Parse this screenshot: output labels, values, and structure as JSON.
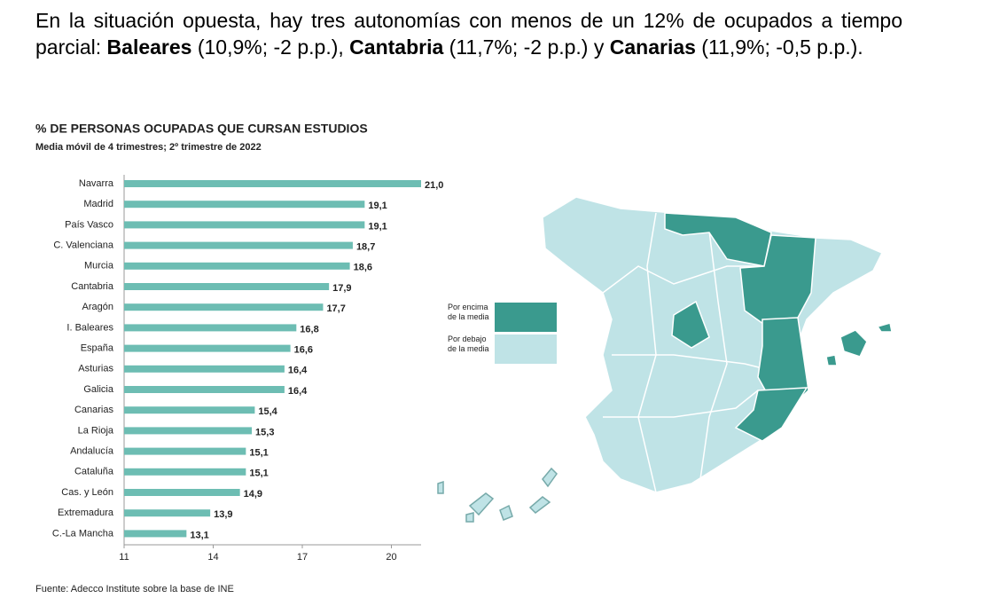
{
  "paragraph": {
    "runs": [
      "En la situación opuesta, hay tres autonomías con menos de un 12% de ocupados a tiempo parcial: ",
      "Baleares",
      " (10,9%; -2 p.p.), ",
      "Cantabria",
      " (11,7%; -2 p.p.) y ",
      "Canarias",
      " (11,9%; -0,5 p.p.)."
    ]
  },
  "chart_data": {
    "type": "bar",
    "orientation": "horizontal",
    "title": "% DE PERSONAS OCUPADAS QUE CURSAN ESTUDIOS",
    "subtitle": "Media móvil de 4 trimestres; 2º trimestre de 2022",
    "categories": [
      "Navarra",
      "Madrid",
      "País Vasco",
      "C. Valenciana",
      "Murcia",
      "Cantabria",
      "Aragón",
      "I. Baleares",
      "España",
      "Asturias",
      "Galicia",
      "Canarias",
      "La Rioja",
      "Andalucía",
      "Cataluña",
      "Cas. y León",
      "Extremadura",
      "C.-La Mancha"
    ],
    "values": [
      21.0,
      19.1,
      19.1,
      18.7,
      18.6,
      17.9,
      17.7,
      16.8,
      16.6,
      16.4,
      16.4,
      15.4,
      15.3,
      15.1,
      15.1,
      14.9,
      13.9,
      13.1
    ],
    "value_labels": [
      "21,0",
      "19,1",
      "19,1",
      "18,7",
      "18,6",
      "17,9",
      "17,7",
      "16,8",
      "16,6",
      "16,4",
      "16,4",
      "15,4",
      "15,3",
      "15,1",
      "15,1",
      "14,9",
      "13,9",
      "13,1"
    ],
    "color": "#6dbdb3",
    "xlim": [
      11,
      21
    ],
    "xticks": [
      11,
      14,
      17,
      20
    ]
  },
  "map_legend": [
    {
      "label": "Por encima de la media",
      "color": "#3a9a8e"
    },
    {
      "label": "Por debajo de la media",
      "color": "#bfe3e6"
    }
  ],
  "source": "Fuente: Adecco Institute sobre la base de INE"
}
